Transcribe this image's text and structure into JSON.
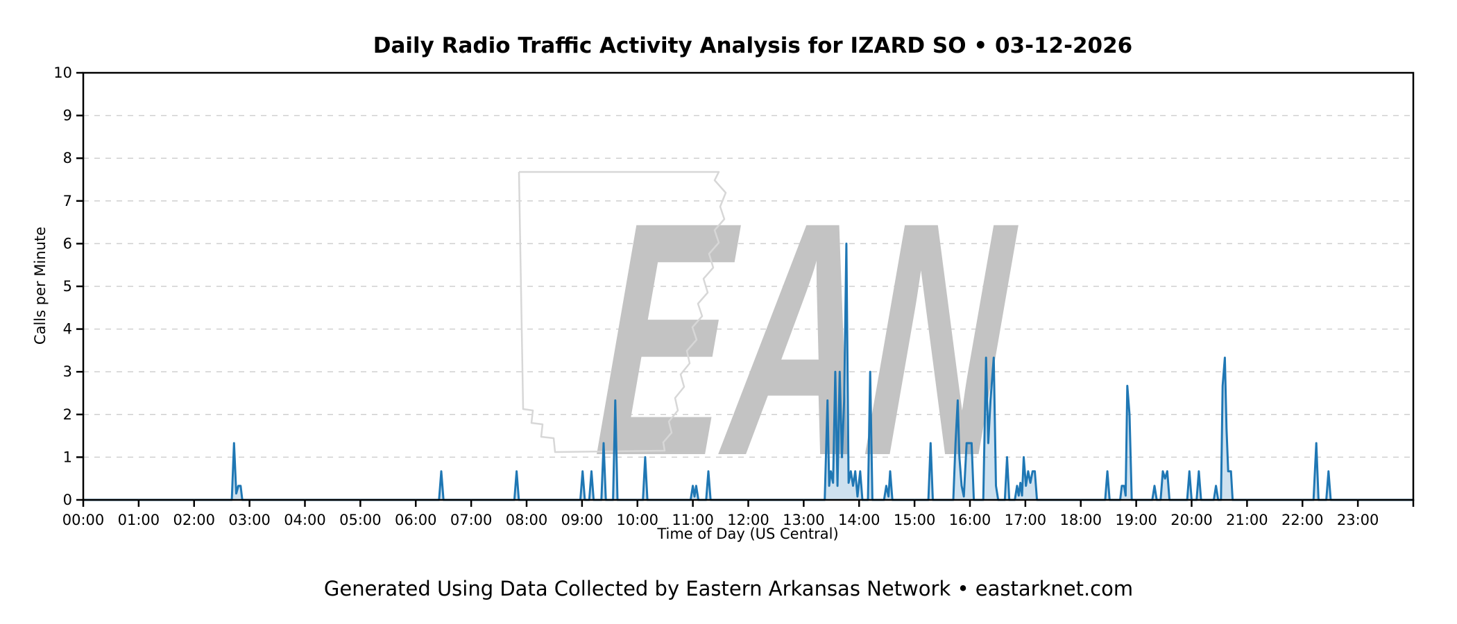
{
  "title": "Daily Radio Traffic Activity Analysis for IZARD SO • 03-12-2026",
  "footer": "Generated Using Data Collected by Eastern Arkansas Network • eastarknet.com",
  "watermark": {
    "text": "EAN",
    "shape": "arkansas-state-outline",
    "text_color": "#c3c3c3",
    "outline_color": "#d7d7d7"
  },
  "chart_data": {
    "type": "area",
    "title": "Daily Radio Traffic Activity Analysis for IZARD SO • 03-12-2026",
    "xlabel": "Time of Day (US Central)",
    "ylabel": "Calls per Minute",
    "xlim": [
      0,
      24
    ],
    "ylim": [
      0,
      10
    ],
    "grid": "horizontal-dashed",
    "x_tick_labels": [
      "00:00",
      "01:00",
      "02:00",
      "03:00",
      "04:00",
      "05:00",
      "06:00",
      "07:00",
      "08:00",
      "09:00",
      "10:00",
      "11:00",
      "12:00",
      "13:00",
      "14:00",
      "15:00",
      "16:00",
      "17:00",
      "18:00",
      "19:00",
      "20:00",
      "21:00",
      "22:00",
      "23:00"
    ],
    "y_tick_labels": [
      "0",
      "1",
      "2",
      "3",
      "4",
      "5",
      "6",
      "7",
      "8",
      "9",
      "10"
    ],
    "line_color": "#1f77b4",
    "fill_color": "rgba(31,119,180,0.22)",
    "grid_color": "#cfcfcf",
    "series_name": "Calls per Minute",
    "points": [
      [
        0,
        0
      ],
      [
        2.68,
        0
      ],
      [
        2.72,
        1.33
      ],
      [
        2.76,
        0.15
      ],
      [
        2.8,
        0.33
      ],
      [
        2.84,
        0.33
      ],
      [
        2.87,
        0
      ],
      [
        6.42,
        0
      ],
      [
        6.46,
        0.67
      ],
      [
        6.5,
        0
      ],
      [
        7.78,
        0
      ],
      [
        7.82,
        0.67
      ],
      [
        7.86,
        0
      ],
      [
        8.97,
        0
      ],
      [
        9.01,
        0.67
      ],
      [
        9.05,
        0
      ],
      [
        9.13,
        0
      ],
      [
        9.17,
        0.67
      ],
      [
        9.21,
        0
      ],
      [
        9.35,
        0
      ],
      [
        9.39,
        1.33
      ],
      [
        9.43,
        0
      ],
      [
        9.56,
        0
      ],
      [
        9.6,
        2.33
      ],
      [
        9.64,
        0
      ],
      [
        10.1,
        0
      ],
      [
        10.14,
        1.0
      ],
      [
        10.18,
        0
      ],
      [
        10.96,
        0
      ],
      [
        11.0,
        0.33
      ],
      [
        11.03,
        0.08
      ],
      [
        11.06,
        0.33
      ],
      [
        11.1,
        0
      ],
      [
        11.24,
        0
      ],
      [
        11.28,
        0.67
      ],
      [
        11.32,
        0
      ],
      [
        13.38,
        0
      ],
      [
        13.43,
        2.33
      ],
      [
        13.46,
        0.33
      ],
      [
        13.49,
        0.67
      ],
      [
        13.53,
        0.4
      ],
      [
        13.57,
        3.0
      ],
      [
        13.61,
        0.33
      ],
      [
        13.65,
        3.0
      ],
      [
        13.69,
        1.0
      ],
      [
        13.73,
        2.33
      ],
      [
        13.77,
        6.0
      ],
      [
        13.81,
        0.4
      ],
      [
        13.85,
        0.67
      ],
      [
        13.89,
        0.33
      ],
      [
        13.93,
        0.67
      ],
      [
        13.97,
        0.08
      ],
      [
        14.02,
        0.67
      ],
      [
        14.06,
        0
      ],
      [
        14.16,
        0
      ],
      [
        14.2,
        3.0
      ],
      [
        14.24,
        0
      ],
      [
        14.45,
        0
      ],
      [
        14.49,
        0.33
      ],
      [
        14.53,
        0.08
      ],
      [
        14.56,
        0.67
      ],
      [
        14.6,
        0
      ],
      [
        15.25,
        0
      ],
      [
        15.29,
        1.33
      ],
      [
        15.33,
        0
      ],
      [
        15.7,
        0
      ],
      [
        15.74,
        1.33
      ],
      [
        15.78,
        2.33
      ],
      [
        15.81,
        1.0
      ],
      [
        15.85,
        0.33
      ],
      [
        15.89,
        0.08
      ],
      [
        15.94,
        1.33
      ],
      [
        16.03,
        1.33
      ],
      [
        16.07,
        0
      ],
      [
        16.24,
        0
      ],
      [
        16.29,
        3.33
      ],
      [
        16.33,
        1.33
      ],
      [
        16.37,
        2.33
      ],
      [
        16.43,
        3.33
      ],
      [
        16.47,
        0.33
      ],
      [
        16.51,
        0
      ],
      [
        16.63,
        0
      ],
      [
        16.67,
        1.0
      ],
      [
        16.71,
        0
      ],
      [
        16.81,
        0
      ],
      [
        16.85,
        0.33
      ],
      [
        16.88,
        0.1
      ],
      [
        16.91,
        0.4
      ],
      [
        16.94,
        0.1
      ],
      [
        16.97,
        1.0
      ],
      [
        17.01,
        0.33
      ],
      [
        17.05,
        0.67
      ],
      [
        17.09,
        0.4
      ],
      [
        17.13,
        0.67
      ],
      [
        17.17,
        0.67
      ],
      [
        17.21,
        0
      ],
      [
        18.44,
        0
      ],
      [
        18.48,
        0.67
      ],
      [
        18.52,
        0
      ],
      [
        18.71,
        0
      ],
      [
        18.74,
        0.33
      ],
      [
        18.78,
        0.33
      ],
      [
        18.81,
        0.1
      ],
      [
        18.84,
        2.67
      ],
      [
        18.88,
        2.0
      ],
      [
        18.92,
        0
      ],
      [
        19.29,
        0
      ],
      [
        19.33,
        0.33
      ],
      [
        19.37,
        0
      ],
      [
        19.44,
        0
      ],
      [
        19.48,
        0.67
      ],
      [
        19.52,
        0.5
      ],
      [
        19.56,
        0.67
      ],
      [
        19.6,
        0
      ],
      [
        19.92,
        0
      ],
      [
        19.96,
        0.67
      ],
      [
        20.0,
        0
      ],
      [
        20.09,
        0
      ],
      [
        20.13,
        0.67
      ],
      [
        20.17,
        0
      ],
      [
        20.4,
        0
      ],
      [
        20.44,
        0.33
      ],
      [
        20.48,
        0
      ],
      [
        20.53,
        0
      ],
      [
        20.56,
        2.67
      ],
      [
        20.6,
        3.33
      ],
      [
        20.63,
        1.67
      ],
      [
        20.66,
        0.67
      ],
      [
        20.71,
        0.67
      ],
      [
        20.74,
        0
      ],
      [
        22.2,
        0
      ],
      [
        22.25,
        1.33
      ],
      [
        22.29,
        0
      ],
      [
        22.43,
        0
      ],
      [
        22.47,
        0.67
      ],
      [
        22.51,
        0
      ],
      [
        24,
        0
      ]
    ]
  }
}
